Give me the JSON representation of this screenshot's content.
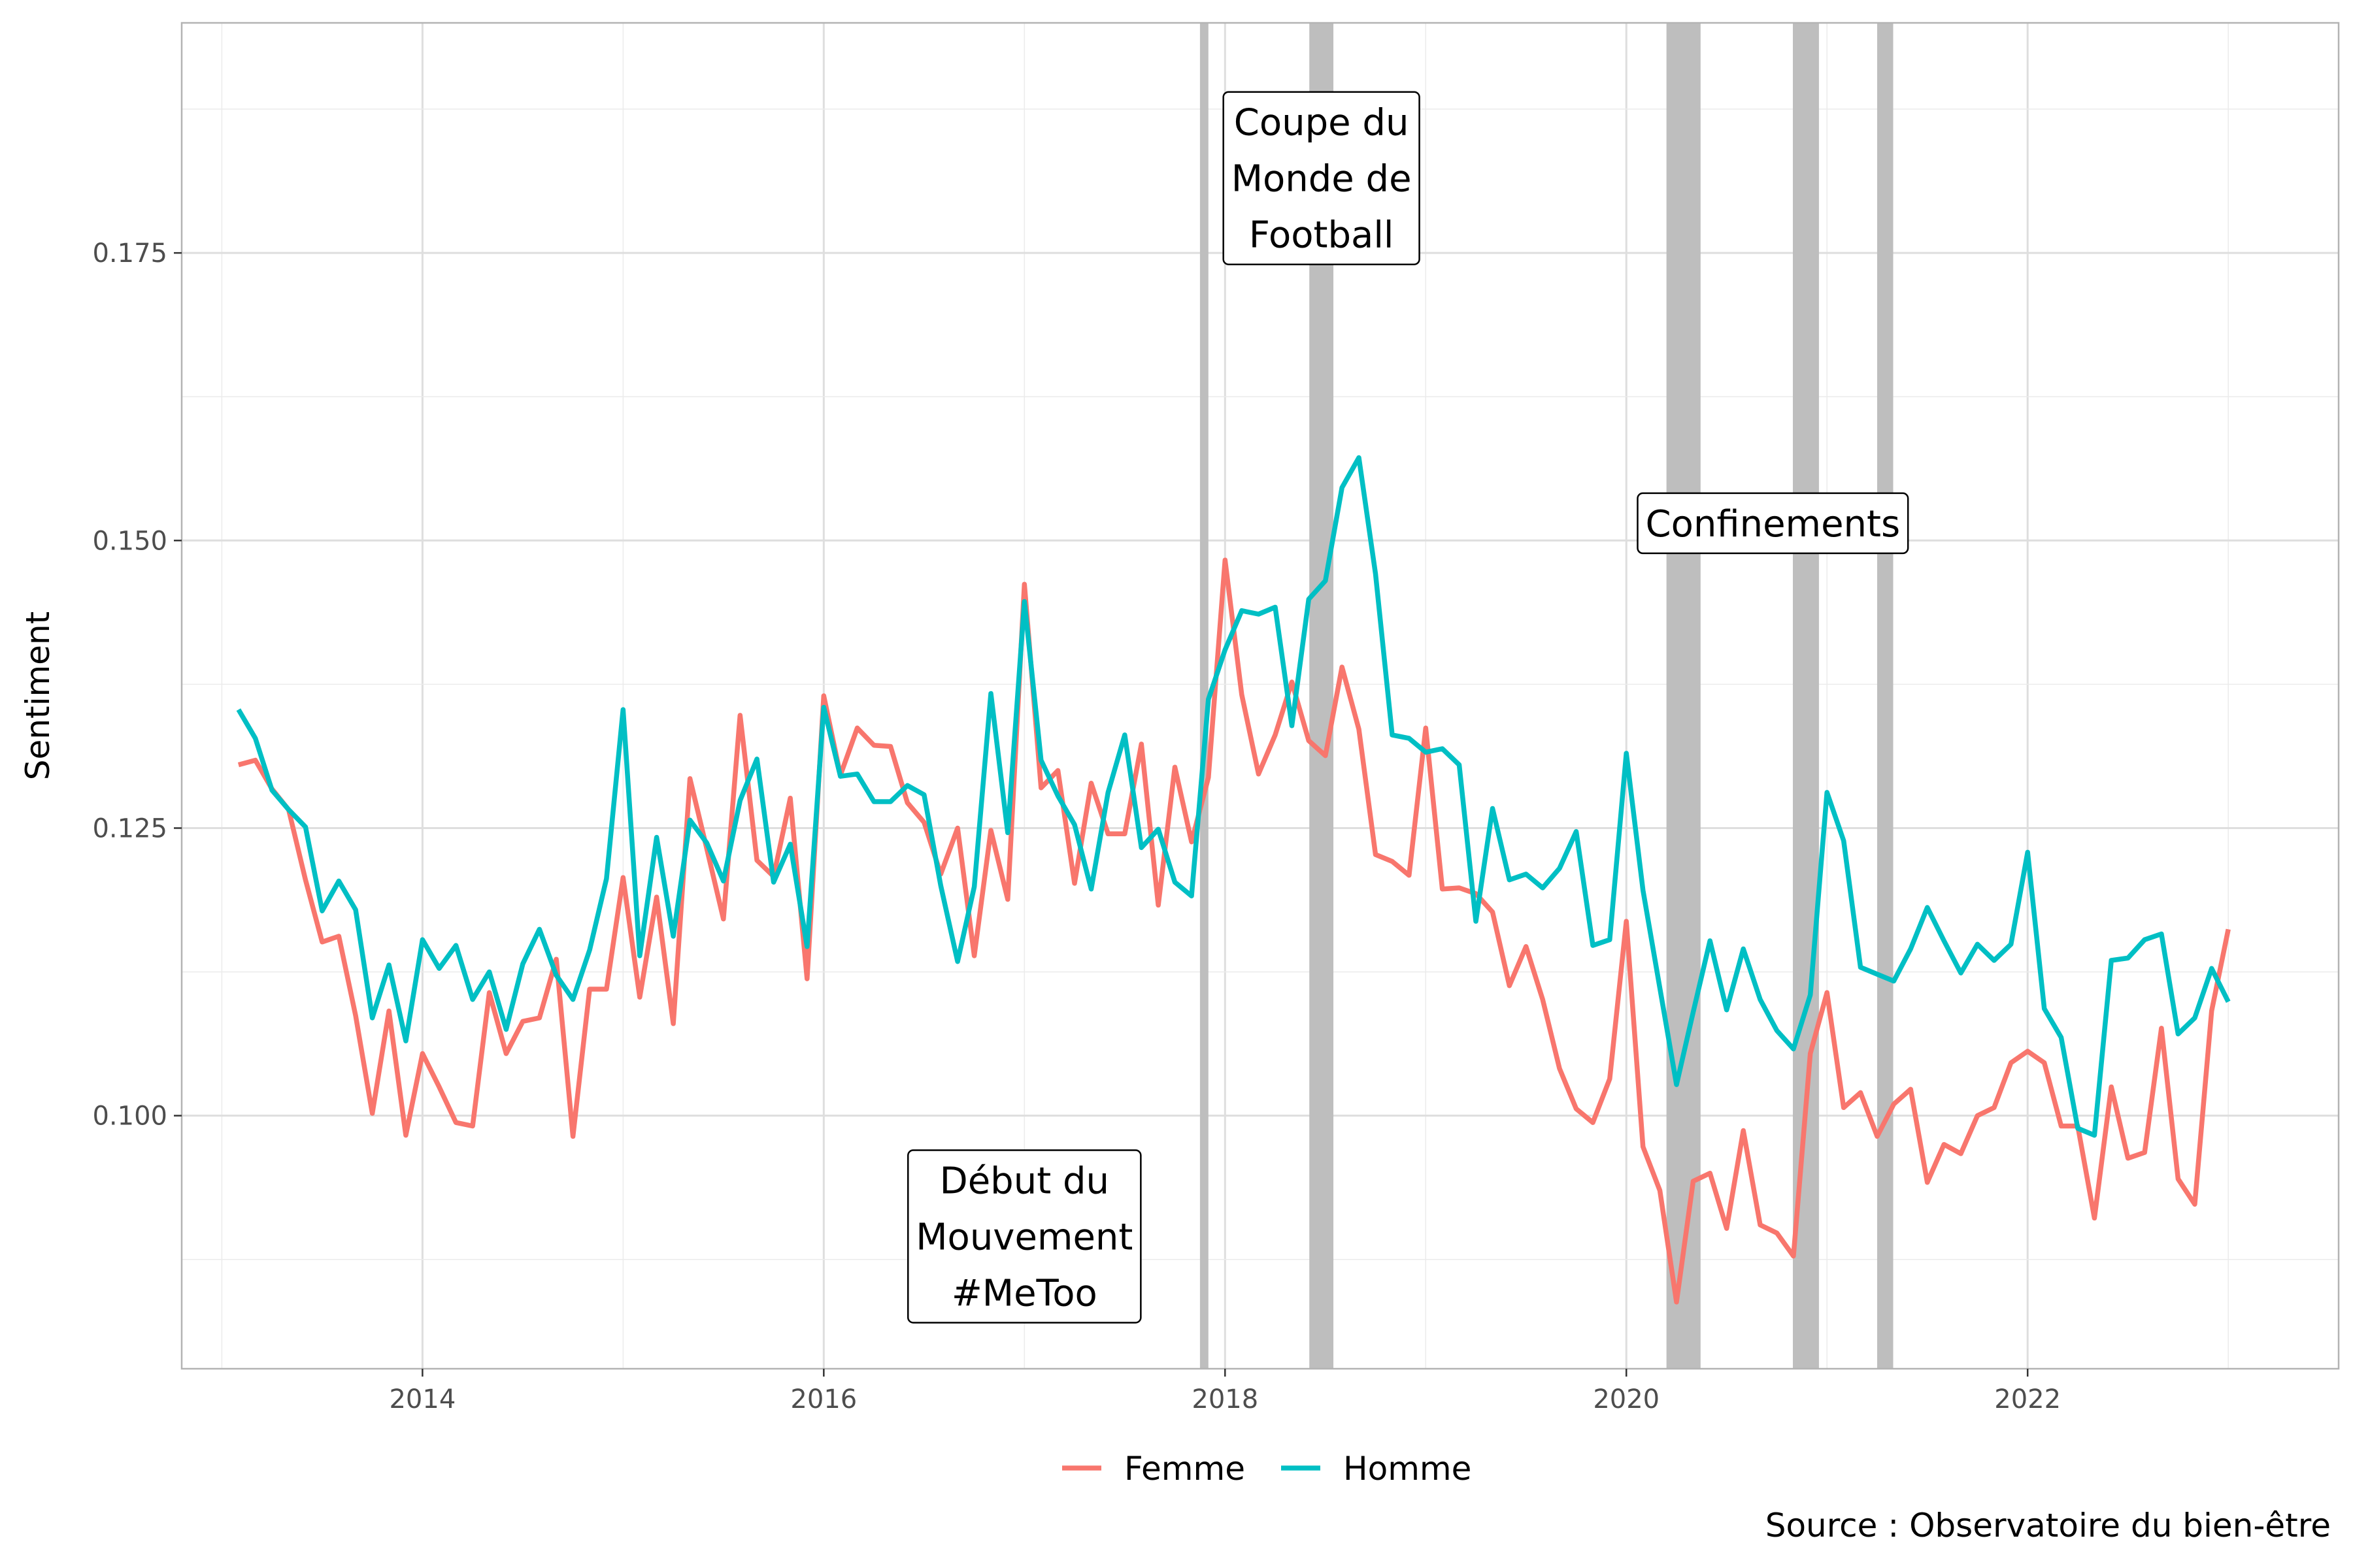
{
  "chart_data": {
    "type": "line",
    "ylabel": "Sentiment",
    "caption": "Source : Observatoire du bien-être",
    "xlim": [
      2012.8,
      2023.55
    ],
    "ylim": [
      0.078,
      0.195
    ],
    "x_ticks": [
      2014,
      2016,
      2018,
      2020,
      2022
    ],
    "x_tick_labels": [
      "2014",
      "2016",
      "2018",
      "2020",
      "2022"
    ],
    "y_ticks": [
      0.1,
      0.125,
      0.15,
      0.175
    ],
    "y_tick_labels": [
      "0.100",
      "0.125",
      "0.150",
      "0.175"
    ],
    "grid": true,
    "legend_position": "bottom",
    "colors": {
      "Femme": "#F8766D",
      "Homme": "#00BFC4",
      "shade": "#BEBEBE"
    },
    "shaded_periods": [
      {
        "start": 2017.875,
        "end": 2017.917
      },
      {
        "start": 2018.42,
        "end": 2018.54
      },
      {
        "start": 2020.2,
        "end": 2020.37
      },
      {
        "start": 2020.83,
        "end": 2020.96
      },
      {
        "start": 2021.25,
        "end": 2021.33
      }
    ],
    "annotations": [
      {
        "lines": [
          "Coupe du",
          "Monde de",
          "Football"
        ],
        "x": 2018.48,
        "y": 0.1815
      },
      {
        "lines": [
          "Confinements"
        ],
        "x": 2020.73,
        "y": 0.1515
      },
      {
        "lines": [
          "Début du",
          "Mouvement",
          "#MeToo"
        ],
        "x": 2017.0,
        "y": 0.0895
      }
    ],
    "x": [
      2013.083,
      2013.167,
      2013.25,
      2013.333,
      2013.417,
      2013.5,
      2013.583,
      2013.667,
      2013.75,
      2013.833,
      2013.917,
      2014.0,
      2014.083,
      2014.167,
      2014.25,
      2014.333,
      2014.417,
      2014.5,
      2014.583,
      2014.667,
      2014.75,
      2014.833,
      2014.917,
      2015.0,
      2015.083,
      2015.167,
      2015.25,
      2015.333,
      2015.417,
      2015.5,
      2015.583,
      2015.667,
      2015.75,
      2015.833,
      2015.917,
      2016.0,
      2016.083,
      2016.167,
      2016.25,
      2016.333,
      2016.417,
      2016.5,
      2016.583,
      2016.667,
      2016.75,
      2016.833,
      2016.917,
      2017.0,
      2017.083,
      2017.167,
      2017.25,
      2017.333,
      2017.417,
      2017.5,
      2017.583,
      2017.667,
      2017.75,
      2017.833,
      2017.917,
      2018.0,
      2018.083,
      2018.167,
      2018.25,
      2018.333,
      2018.417,
      2018.5,
      2018.583,
      2018.667,
      2018.75,
      2018.833,
      2018.917,
      2019.0,
      2019.083,
      2019.167,
      2019.25,
      2019.333,
      2019.417,
      2019.5,
      2019.583,
      2019.667,
      2019.75,
      2019.833,
      2019.917,
      2020.0,
      2020.083,
      2020.167,
      2020.25,
      2020.333,
      2020.417,
      2020.5,
      2020.583,
      2020.667,
      2020.75,
      2020.833,
      2020.917,
      2021.0,
      2021.083,
      2021.167,
      2021.25,
      2021.333,
      2021.417,
      2021.5,
      2021.583,
      2021.667,
      2021.75,
      2021.833,
      2021.917,
      2022.0,
      2022.083,
      2022.167,
      2022.25,
      2022.333,
      2022.417,
      2022.5,
      2022.583,
      2022.667,
      2022.75,
      2022.833,
      2022.917,
      2023.0
    ],
    "series": [
      {
        "name": "Femme",
        "values": [
          0.1305,
          0.1309,
          0.1284,
          0.1266,
          0.1205,
          0.1151,
          0.1156,
          0.1087,
          0.1002,
          0.1091,
          0.0983,
          0.1054,
          0.1025,
          0.0994,
          0.0991,
          0.1107,
          0.1054,
          0.1082,
          0.1085,
          0.1136,
          0.0982,
          0.111,
          0.111,
          0.1207,
          0.1103,
          0.119,
          0.108,
          0.1293,
          0.1232,
          0.1171,
          0.1348,
          0.1222,
          0.1208,
          0.1276,
          0.1119,
          0.1365,
          0.1296,
          0.1337,
          0.1322,
          0.1321,
          0.1272,
          0.1255,
          0.121,
          0.125,
          0.1139,
          0.1248,
          0.1188,
          0.1462,
          0.1285,
          0.13,
          0.1202,
          0.1289,
          0.1245,
          0.1245,
          0.1323,
          0.1183,
          0.1303,
          0.1238,
          0.1294,
          0.1483,
          0.1366,
          0.1297,
          0.1331,
          0.1377,
          0.1326,
          0.1313,
          0.139,
          0.1336,
          0.1227,
          0.1221,
          0.1209,
          0.1337,
          0.1197,
          0.1198,
          0.1193,
          0.1177,
          0.1113,
          0.1147,
          0.1101,
          0.1041,
          0.1006,
          0.0994,
          0.1032,
          0.1169,
          0.0973,
          0.0935,
          0.0838,
          0.0943,
          0.095,
          0.0902,
          0.0987,
          0.0905,
          0.0898,
          0.0878,
          0.1054,
          0.1107,
          0.1007,
          0.102,
          0.0982,
          0.101,
          0.1023,
          0.0942,
          0.0975,
          0.0967,
          0.1,
          0.1007,
          0.1046,
          0.1056,
          0.1046,
          0.0991,
          0.0991,
          0.0911,
          0.1025,
          0.0963,
          0.0968,
          0.1076,
          0.0945,
          0.0923,
          0.1091,
          0.1162
        ]
      },
      {
        "name": "Homme",
        "values": [
          0.1353,
          0.1328,
          0.1283,
          0.1266,
          0.1251,
          0.1178,
          0.1204,
          0.1179,
          0.1085,
          0.1131,
          0.1065,
          0.1153,
          0.1128,
          0.1148,
          0.1101,
          0.1125,
          0.1075,
          0.1132,
          0.1162,
          0.1122,
          0.1101,
          0.1144,
          0.1206,
          0.1353,
          0.1139,
          0.1242,
          0.1156,
          0.1257,
          0.1237,
          0.1204,
          0.1274,
          0.131,
          0.1203,
          0.1236,
          0.1147,
          0.1355,
          0.1295,
          0.1297,
          0.1273,
          0.1273,
          0.1287,
          0.1279,
          0.12,
          0.1134,
          0.1199,
          0.1367,
          0.1246,
          0.1447,
          0.1309,
          0.1278,
          0.1253,
          0.1197,
          0.1281,
          0.1331,
          0.1233,
          0.1249,
          0.1203,
          0.1191,
          0.1362,
          0.1405,
          0.1439,
          0.1436,
          0.1442,
          0.1339,
          0.1449,
          0.1465,
          0.1546,
          0.1572,
          0.1471,
          0.1331,
          0.1328,
          0.1316,
          0.1319,
          0.1305,
          0.1169,
          0.1267,
          0.1205,
          0.121,
          0.1198,
          0.1215,
          0.1247,
          0.1148,
          0.1153,
          0.1315,
          0.1196,
          0.1111,
          0.1027,
          0.109,
          0.1152,
          0.1092,
          0.1145,
          0.1101,
          0.1074,
          0.1058,
          0.1105,
          0.1281,
          0.1239,
          0.1129,
          0.1123,
          0.1117,
          0.1145,
          0.1181,
          0.1152,
          0.1124,
          0.1149,
          0.1135,
          0.1149,
          0.1229,
          0.1093,
          0.1068,
          0.0989,
          0.0983,
          0.1135,
          0.1137,
          0.1153,
          0.1158,
          0.1071,
          0.1085,
          0.1128,
          0.1099
        ]
      }
    ],
    "legend": {
      "items": [
        {
          "label": "Femme",
          "color": "#F8766D"
        },
        {
          "label": "Homme",
          "color": "#00BFC4"
        }
      ]
    }
  }
}
